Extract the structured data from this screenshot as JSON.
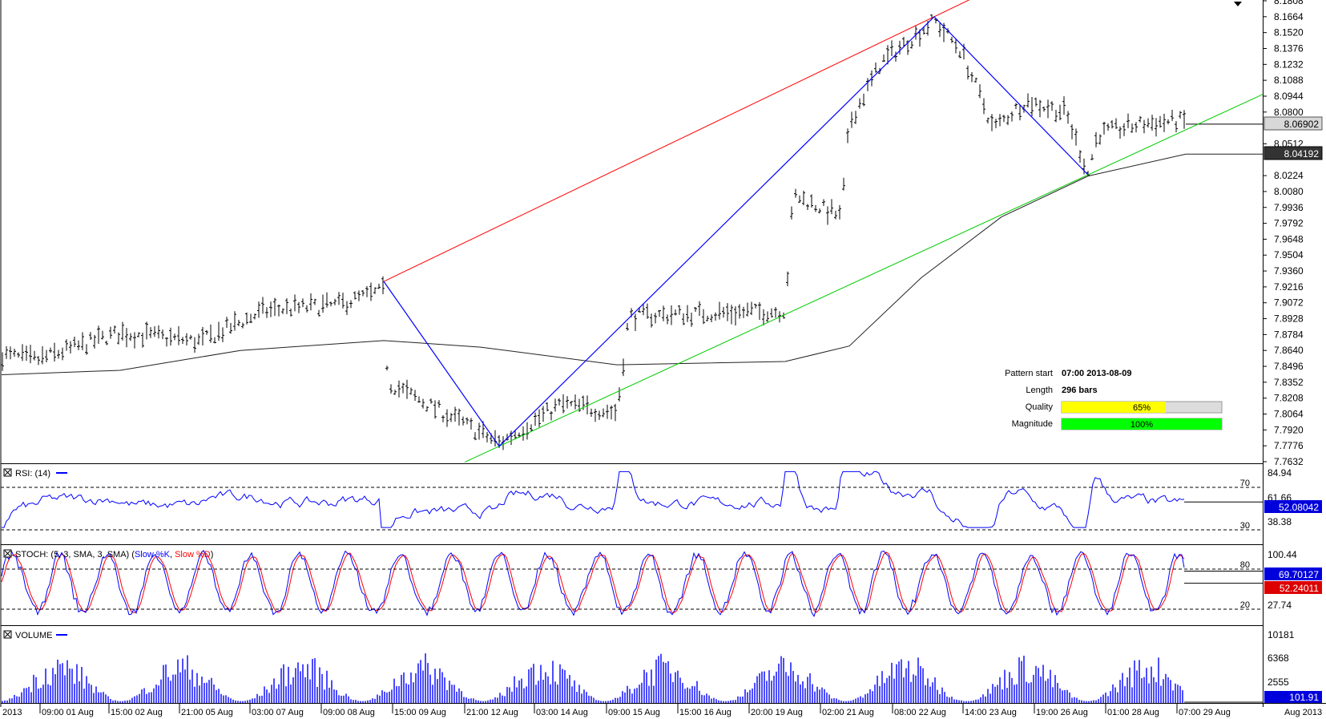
{
  "panels": {
    "price": {
      "y_ticks": [
        "8.1808",
        "8.1664",
        "8.1520",
        "8.1376",
        "8.1232",
        "8.1088",
        "8.0944",
        "8.0800",
        "8.0512",
        "8.0224",
        "8.0080",
        "7.9936",
        "7.9792",
        "7.9648",
        "7.9504",
        "7.9360",
        "7.9216",
        "7.9072",
        "7.8928",
        "7.8784",
        "7.8640",
        "7.8496",
        "7.8352",
        "7.8208",
        "7.8064",
        "7.7920",
        "7.7776",
        "7.7632"
      ],
      "current_price_label": "8.06902",
      "ma_label": "8.04192"
    },
    "rsi": {
      "title": "RSI: (14)",
      "ticks": [
        "84.94",
        "61.66",
        "38.38"
      ],
      "levels": [
        "70",
        "30"
      ],
      "value_label": "52.08042"
    },
    "stoch": {
      "title_prefix": "STOCH: (5, 3, SMA, 3, SMA) (",
      "k_label": "Slow %K",
      "sep": ", ",
      "d_label": "Slow %D",
      "title_suffix": ")",
      "ticks": [
        "100.44",
        "27.74"
      ],
      "levels": [
        "80",
        "20"
      ],
      "k_value": "69.70127",
      "d_value": "52.24011"
    },
    "volume": {
      "title": "VOLUME",
      "ticks": [
        "10181",
        "6368",
        "2555"
      ],
      "value_label": "101.91"
    }
  },
  "x_axis": {
    "left_label": "2013",
    "right_label": "Aug 2013",
    "labels": [
      "09:00 01 Aug",
      "15:00 02 Aug",
      "21:00 05 Aug",
      "03:00 07 Aug",
      "09:00 08 Aug",
      "15:00 09 Aug",
      "21:00 12 Aug",
      "03:00 14 Aug",
      "09:00 15 Aug",
      "15:00 16 Aug",
      "20:00 19 Aug",
      "02:00 21 Aug",
      "08:00 22 Aug",
      "14:00 23 Aug",
      "19:00 26 Aug",
      "01:00 28 Aug",
      "07:00 29 Aug"
    ]
  },
  "pattern_info": {
    "start_label": "Pattern start",
    "start_value": "07:00 2013-08-09",
    "length_label": "Length",
    "length_value": "296 bars",
    "quality_label": "Quality",
    "quality_value": "65%",
    "quality_fraction": 0.65,
    "magnitude_label": "Magnitude",
    "magnitude_value": "100%",
    "magnitude_fraction": 1.0
  },
  "colors": {
    "price_bars": "#000000",
    "pattern_line": "#0000ff",
    "upper_trendline": "#ff0000",
    "lower_trendline": "#00cc00",
    "moving_average": "#000000",
    "rsi": "#0000ff",
    "stoch_k": "#0000ff",
    "stoch_d": "#ff0000",
    "volume": "#0000ff",
    "quality_bar": "#ffff00",
    "magnitude_bar": "#00ff00"
  },
  "chart_data": {
    "type": "candlestick",
    "instrument_note": "",
    "price_axis_range": [
      7.7632,
      8.1808
    ],
    "pattern_points": [
      {
        "time": "07:00 2013-08-09",
        "price": 7.9265
      },
      {
        "time": "12 Aug",
        "price": 7.7772
      },
      {
        "time": "22 Aug",
        "price": 8.1664
      },
      {
        "time": "26 Aug",
        "price": 8.0231
      }
    ],
    "last_price": 8.06902,
    "moving_average_last": 8.04192,
    "rsi_last": 52.08042,
    "stoch_k_last": 69.70127,
    "stoch_d_last": 52.24011,
    "volume_last": 101.91
  }
}
